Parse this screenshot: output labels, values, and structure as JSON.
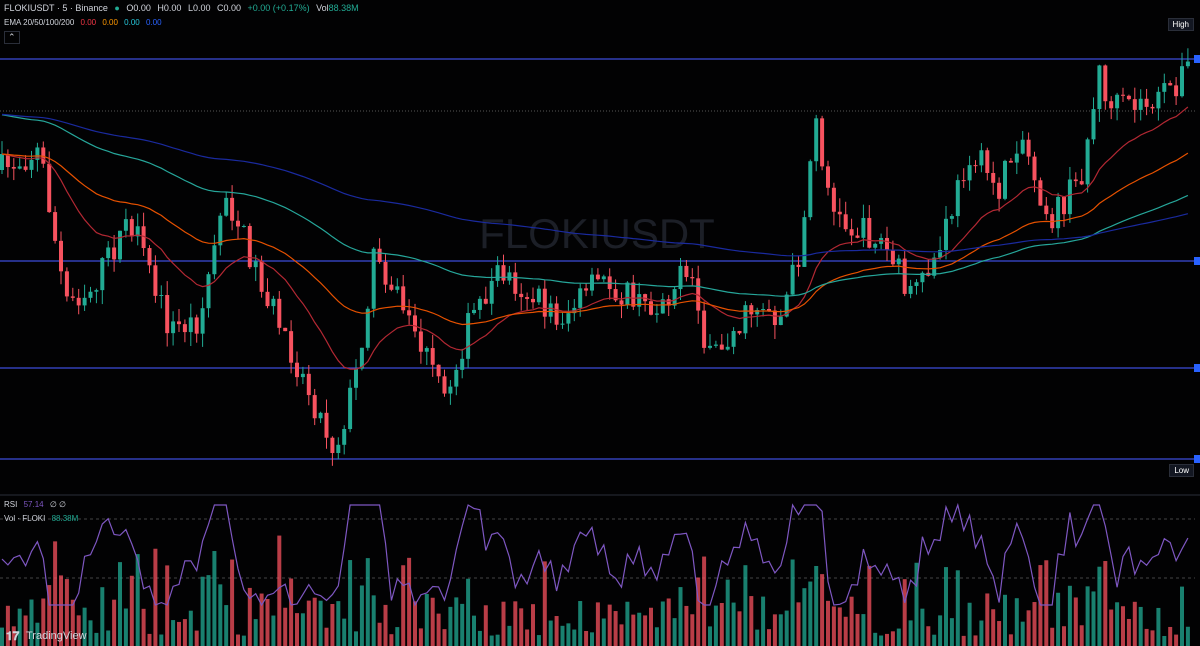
{
  "header": {
    "symbol": "FLOKIUSDT · 5 · Binance",
    "open": "O0.00",
    "high": "H0.00",
    "low": "L0.00",
    "close": "C0.00",
    "change": "+0.00 (+0.17%)",
    "vol_label": "Vol",
    "vol_value": "88.38M"
  },
  "ema": {
    "label": "EMA 20/50/100/200",
    "values": [
      "0.00",
      "0.00",
      "0.00",
      "0.00"
    ]
  },
  "watermark": "FLOKIUSDT",
  "price_labels": {
    "high": "High",
    "low": "Low"
  },
  "rsi": {
    "label": "RSI",
    "value": "57.14",
    "extra": "∅ ∅"
  },
  "volume": {
    "label": "Vol · FLOKI",
    "value": "88.38M"
  },
  "brand": "TradingView"
}
